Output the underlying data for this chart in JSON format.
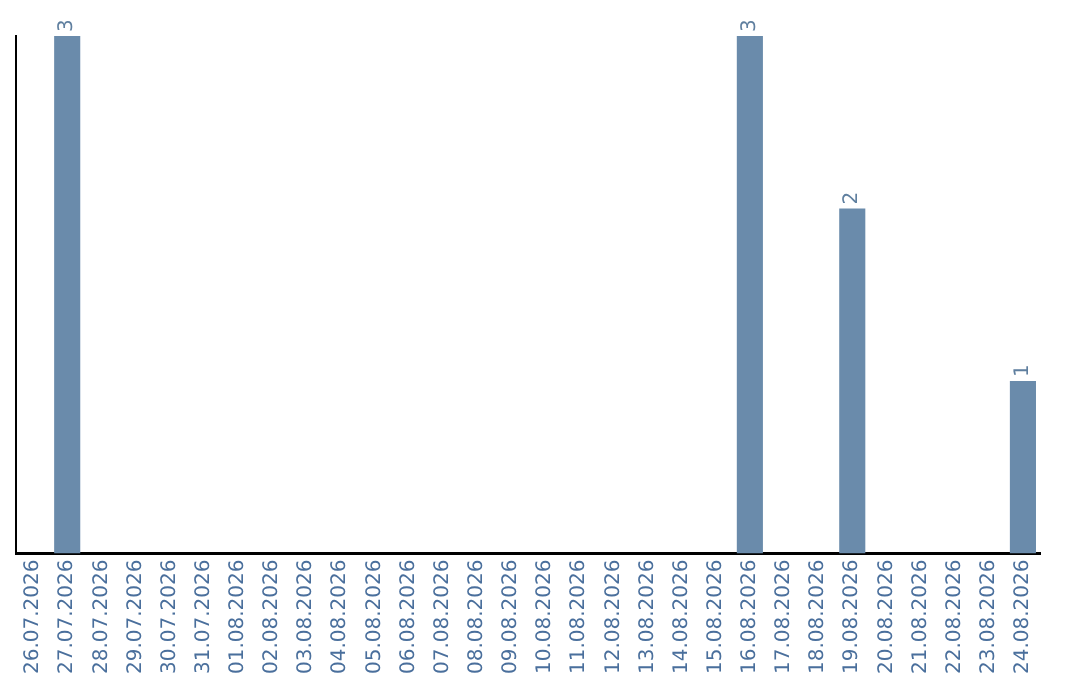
{
  "chart_data": {
    "type": "bar",
    "categories": [
      "26.07.2026",
      "27.07.2026",
      "28.07.2026",
      "29.07.2026",
      "30.07.2026",
      "31.07.2026",
      "01.08.2026",
      "02.08.2026",
      "03.08.2026",
      "04.08.2026",
      "05.08.2026",
      "06.08.2026",
      "07.08.2026",
      "08.08.2026",
      "09.08.2026",
      "10.08.2026",
      "11.08.2026",
      "12.08.2026",
      "13.08.2026",
      "14.08.2026",
      "15.08.2026",
      "16.08.2026",
      "17.08.2026",
      "18.08.2026",
      "19.08.2026",
      "20.08.2026",
      "21.08.2026",
      "22.08.2026",
      "23.08.2026",
      "24.08.2026"
    ],
    "values": [
      0,
      3,
      0,
      0,
      0,
      0,
      0,
      0,
      0,
      0,
      0,
      0,
      0,
      0,
      0,
      0,
      0,
      0,
      0,
      0,
      0,
      3,
      0,
      0,
      2,
      0,
      0,
      0,
      0,
      1
    ],
    "value_labels": [
      null,
      "3",
      null,
      null,
      null,
      null,
      null,
      null,
      null,
      null,
      null,
      null,
      null,
      null,
      null,
      null,
      null,
      null,
      null,
      null,
      null,
      "3",
      null,
      null,
      "2",
      null,
      null,
      null,
      null,
      "1"
    ],
    "color": "#6a8bab",
    "grid": false,
    "legend": false,
    "tick_labels": "x"
  }
}
